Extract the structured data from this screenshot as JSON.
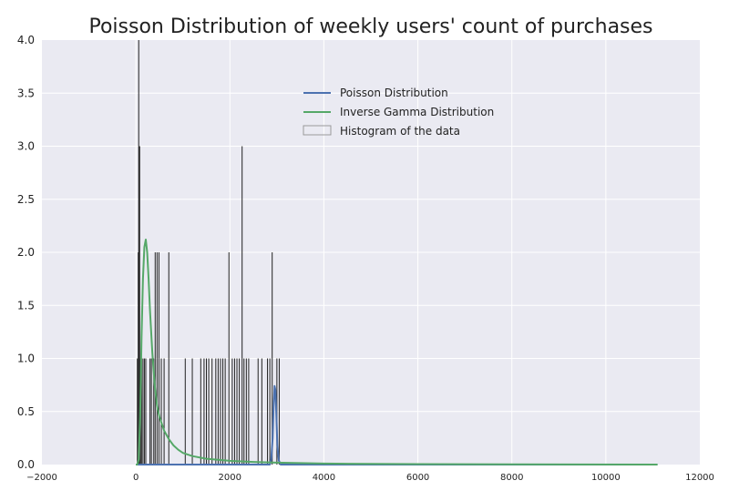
{
  "chart_data": {
    "type": "line",
    "title": "Poisson Distribution of weekly users' count of purchases",
    "xlabel": "",
    "ylabel": "",
    "xlim": [
      -2000,
      12000
    ],
    "ylim": [
      0,
      4
    ],
    "grid": true,
    "legend_position": "top-center",
    "x_ticks": [
      -2000,
      0,
      2000,
      4000,
      6000,
      8000,
      10000,
      12000
    ],
    "x_tick_labels": [
      "−2000",
      "0",
      "2000",
      "4000",
      "6000",
      "8000",
      "10000",
      "12000"
    ],
    "y_ticks": [
      0,
      0.5,
      1,
      1.5,
      2,
      2.5,
      3,
      3.5,
      4
    ],
    "y_tick_labels": [
      "0.0",
      "0.5",
      "1.0",
      "1.5",
      "2.0",
      "2.5",
      "3.0",
      "3.5",
      "4.0"
    ],
    "series": [
      {
        "name": "Poisson Distribution",
        "color": "#4c72b0",
        "x": [
          0,
          2000,
          2850,
          2880,
          2910,
          2930,
          2950,
          2970,
          2990,
          3010,
          3040,
          3080,
          4000,
          11100
        ],
        "y": [
          0,
          0,
          0.0,
          0.05,
          0.25,
          0.55,
          0.74,
          0.7,
          0.45,
          0.18,
          0.04,
          0.0,
          0,
          0
        ]
      },
      {
        "name": "Inverse Gamma Distribution",
        "color": "#55a868",
        "x": [
          0,
          30,
          60,
          90,
          120,
          150,
          180,
          210,
          240,
          270,
          300,
          350,
          400,
          450,
          500,
          600,
          700,
          800,
          900,
          1000,
          1200,
          1500,
          2000,
          2500,
          3000,
          4000,
          5000,
          6000,
          8000,
          11100
        ],
        "y": [
          0,
          0.0,
          0.05,
          0.45,
          1.2,
          1.75,
          2.05,
          2.12,
          2.0,
          1.75,
          1.45,
          1.05,
          0.75,
          0.55,
          0.45,
          0.32,
          0.24,
          0.18,
          0.14,
          0.11,
          0.08,
          0.055,
          0.035,
          0.025,
          0.018,
          0.01,
          0.006,
          0.004,
          0.002,
          0.0
        ]
      }
    ],
    "histogram": {
      "name": "Histogram of the data",
      "bars": [
        {
          "x": 30,
          "h": 1
        },
        {
          "x": 50,
          "h": 2
        },
        {
          "x": 60,
          "h": 4
        },
        {
          "x": 70,
          "h": 3
        },
        {
          "x": 80,
          "h": 3
        },
        {
          "x": 100,
          "h": 1
        },
        {
          "x": 120,
          "h": 1
        },
        {
          "x": 150,
          "h": 1
        },
        {
          "x": 180,
          "h": 1
        },
        {
          "x": 210,
          "h": 1
        },
        {
          "x": 300,
          "h": 1
        },
        {
          "x": 330,
          "h": 1
        },
        {
          "x": 380,
          "h": 1
        },
        {
          "x": 410,
          "h": 2
        },
        {
          "x": 450,
          "h": 2
        },
        {
          "x": 490,
          "h": 2
        },
        {
          "x": 540,
          "h": 1
        },
        {
          "x": 600,
          "h": 1
        },
        {
          "x": 700,
          "h": 2
        },
        {
          "x": 1050,
          "h": 1
        },
        {
          "x": 1200,
          "h": 1
        },
        {
          "x": 1380,
          "h": 1
        },
        {
          "x": 1450,
          "h": 1
        },
        {
          "x": 1500,
          "h": 1
        },
        {
          "x": 1550,
          "h": 1
        },
        {
          "x": 1620,
          "h": 1
        },
        {
          "x": 1700,
          "h": 1
        },
        {
          "x": 1750,
          "h": 1
        },
        {
          "x": 1800,
          "h": 1
        },
        {
          "x": 1850,
          "h": 1
        },
        {
          "x": 1900,
          "h": 1
        },
        {
          "x": 1980,
          "h": 2
        },
        {
          "x": 2050,
          "h": 1
        },
        {
          "x": 2100,
          "h": 1
        },
        {
          "x": 2150,
          "h": 1
        },
        {
          "x": 2200,
          "h": 1
        },
        {
          "x": 2260,
          "h": 3
        },
        {
          "x": 2300,
          "h": 1
        },
        {
          "x": 2350,
          "h": 1
        },
        {
          "x": 2400,
          "h": 1
        },
        {
          "x": 2600,
          "h": 1
        },
        {
          "x": 2680,
          "h": 1
        },
        {
          "x": 2800,
          "h": 1
        },
        {
          "x": 2850,
          "h": 1
        },
        {
          "x": 2900,
          "h": 2
        },
        {
          "x": 3000,
          "h": 1
        },
        {
          "x": 3050,
          "h": 1
        }
      ]
    }
  }
}
